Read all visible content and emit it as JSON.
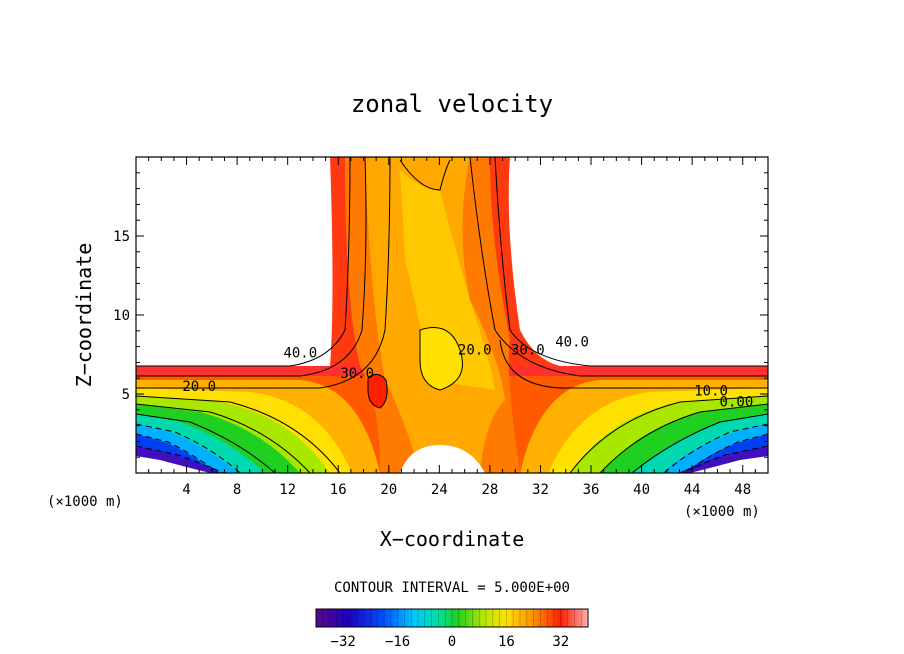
{
  "chart_data": {
    "type": "contour",
    "title": "zonal velocity",
    "xlabel": "X−coordinate",
    "ylabel": "Z−coordinate",
    "x_unit": "(×1000 m)",
    "y_unit": "(×1000 m)",
    "xlim": [
      0,
      50
    ],
    "ylim": [
      0,
      20
    ],
    "x_ticks": [
      "4",
      "8",
      "12",
      "16",
      "20",
      "24",
      "28",
      "32",
      "36",
      "40",
      "44",
      "48"
    ],
    "y_ticks": [
      "5",
      "10",
      "15"
    ],
    "contour_interval_text": "CONTOUR INTERVAL = 5.000E+00",
    "contour_labels": [
      {
        "text": "40.0",
        "x": 13.0,
        "z": 7.3
      },
      {
        "text": "30.0",
        "x": 17.5,
        "z": 6.0
      },
      {
        "text": "20.0",
        "x": 5.0,
        "z": 5.2
      },
      {
        "text": "20.0",
        "x": 26.8,
        "z": 7.5
      },
      {
        "text": "30.0",
        "x": 31.0,
        "z": 7.5
      },
      {
        "text": "40.0",
        "x": 34.5,
        "z": 8.0
      },
      {
        "text": "10.0",
        "x": 45.5,
        "z": 4.9
      },
      {
        "text": "0.00",
        "x": 47.5,
        "z": 4.2
      }
    ],
    "colorbar": {
      "range": [
        -40,
        40
      ],
      "ticks": [
        "−32",
        "−16",
        "0",
        "16",
        "32"
      ],
      "tick_values": [
        -32,
        -16,
        0,
        16,
        32
      ]
    },
    "grid": false,
    "legend": "none"
  }
}
